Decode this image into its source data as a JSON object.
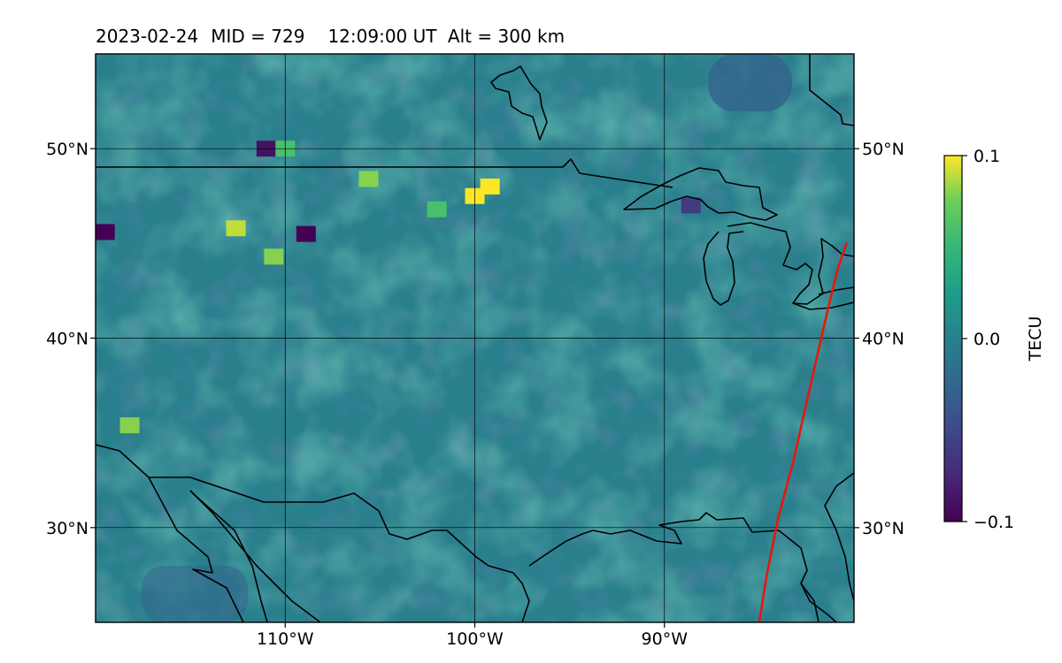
{
  "title": {
    "date": "2023-02-24",
    "mid": "MID = 729",
    "time": "12:09:00  UT",
    "alt": "Alt = 300 km"
  },
  "map": {
    "lon_range": [
      -120,
      -80
    ],
    "lat_range": [
      25,
      55
    ],
    "lon_ticks": [
      {
        "value": -110,
        "label": "110°W"
      },
      {
        "value": -100,
        "label": "100°W"
      },
      {
        "value": -90,
        "label": "90°W"
      }
    ],
    "lat_ticks": [
      {
        "value": 50,
        "label": "50°N"
      },
      {
        "value": 40,
        "label": "40°N"
      },
      {
        "value": 30,
        "label": "30°N"
      }
    ],
    "grid": true,
    "track_color": "#e8160c",
    "track_points": [
      [
        -85.0,
        25.0
      ],
      [
        -84.6,
        27.5
      ],
      [
        -84.0,
        30.5
      ],
      [
        -83.2,
        33.5
      ],
      [
        -82.3,
        37.5
      ],
      [
        -81.5,
        41.0
      ],
      [
        -80.9,
        43.5
      ],
      [
        -80.4,
        45.0
      ]
    ],
    "anomalies": [
      {
        "lon": -119.5,
        "lat": 45.6,
        "value": -0.1
      },
      {
        "lon": -111.0,
        "lat": 50.0,
        "value": -0.09
      },
      {
        "lon": -108.9,
        "lat": 45.5,
        "value": -0.1
      },
      {
        "lon": -112.6,
        "lat": 45.8,
        "value": 0.09
      },
      {
        "lon": -110.6,
        "lat": 44.3,
        "value": 0.08
      },
      {
        "lon": -105.6,
        "lat": 48.4,
        "value": 0.08
      },
      {
        "lon": -100.0,
        "lat": 47.5,
        "value": 0.1
      },
      {
        "lon": -99.2,
        "lat": 48.0,
        "value": 0.1
      },
      {
        "lon": -110.0,
        "lat": 50.0,
        "value": 0.06
      },
      {
        "lon": -118.2,
        "lat": 35.4,
        "value": 0.08
      },
      {
        "lon": -88.6,
        "lat": 47.0,
        "value": -0.06
      },
      {
        "lon": -102.0,
        "lat": 46.8,
        "value": 0.06
      }
    ]
  },
  "colorbar": {
    "label": "TECU",
    "ticks": [
      {
        "value": 0.1,
        "label": "0.1"
      },
      {
        "value": 0.0,
        "label": "0.0"
      },
      {
        "value": -0.1,
        "label": "−0.1"
      }
    ],
    "vmin": -0.1,
    "vmax": 0.1,
    "colormap": "viridis"
  }
}
